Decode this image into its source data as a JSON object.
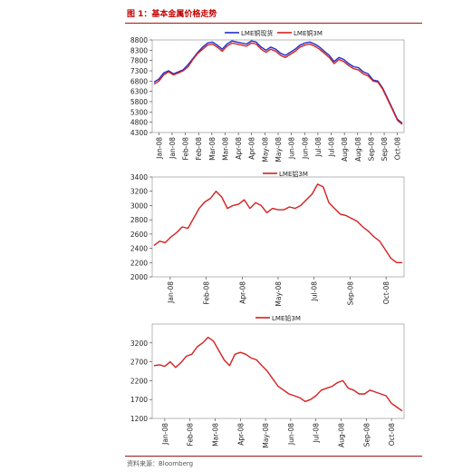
{
  "figure_title": "图 1：基本金属价格走势",
  "source": "资料来源：Bloomberg",
  "colors": {
    "title": "#c00000",
    "rule": "#a01818",
    "red": "#d42020",
    "blue": "#2030c8"
  },
  "chart_data": [
    {
      "type": "line",
      "ylim": [
        4300,
        8800
      ],
      "yticks": [
        4300,
        4800,
        5300,
        5800,
        6300,
        6800,
        7300,
        7800,
        8300,
        8800
      ],
      "xticks": [
        "Jan-08",
        "Jan-08",
        "Feb-08",
        "Feb-08",
        "Mar-08",
        "Mar-08",
        "Apr-08",
        "Apr-08",
        "May-08",
        "May-08",
        "Jun-08",
        "Jun-08",
        "Jul-08",
        "Jul-08",
        "Aug-08",
        "Aug-08",
        "Sep-08",
        "Sep-08",
        "Oct-08"
      ],
      "legend_position": "top",
      "series": [
        {
          "name": "LME铜现货",
          "color": "#2030c8",
          "values": [
            6750,
            6900,
            7200,
            7300,
            7150,
            7250,
            7350,
            7600,
            7900,
            8200,
            8450,
            8650,
            8700,
            8550,
            8350,
            8600,
            8750,
            8700,
            8650,
            8600,
            8750,
            8700,
            8450,
            8300,
            8450,
            8350,
            8150,
            8050,
            8200,
            8350,
            8550,
            8650,
            8700,
            8600,
            8450,
            8250,
            8050,
            7750,
            7950,
            7850,
            7650,
            7500,
            7450,
            7250,
            7150,
            6850,
            6800,
            6450,
            5950,
            5450,
            4950,
            4750
          ]
        },
        {
          "name": "LME铜3M",
          "color": "#d42020",
          "values": [
            6650,
            6800,
            7100,
            7250,
            7100,
            7200,
            7300,
            7500,
            7850,
            8150,
            8350,
            8550,
            8600,
            8450,
            8250,
            8500,
            8650,
            8600,
            8550,
            8500,
            8650,
            8600,
            8350,
            8200,
            8350,
            8250,
            8050,
            7950,
            8100,
            8250,
            8450,
            8550,
            8600,
            8500,
            8350,
            8150,
            7950,
            7650,
            7850,
            7750,
            7550,
            7400,
            7350,
            7150,
            7050,
            6800,
            6750,
            6400,
            5900,
            5400,
            4900,
            4700
          ]
        }
      ]
    },
    {
      "type": "line",
      "ylim": [
        2000,
        3400
      ],
      "yticks": [
        2000,
        2200,
        2400,
        2600,
        2800,
        3000,
        3200,
        3400
      ],
      "xticks": [
        "Jan-08",
        "Feb-08",
        "Apr-08",
        "May-08",
        "Jul-08",
        "Sep-08",
        "Oct-08"
      ],
      "legend_position": "top",
      "series": [
        {
          "name": "LME铝3M",
          "color": "#d42020",
          "values": [
            2440,
            2500,
            2480,
            2560,
            2620,
            2700,
            2680,
            2820,
            2960,
            3050,
            3100,
            3200,
            3120,
            2960,
            3000,
            3020,
            3080,
            2960,
            3040,
            3000,
            2900,
            2960,
            2940,
            2940,
            2980,
            2960,
            3000,
            3080,
            3160,
            3300,
            3260,
            3040,
            2960,
            2880,
            2860,
            2820,
            2780,
            2700,
            2640,
            2560,
            2500,
            2380,
            2260,
            2200,
            2200
          ]
        }
      ]
    },
    {
      "type": "line",
      "ylim": [
        1200,
        3700
      ],
      "yticks": [
        1200,
        1700,
        2200,
        2700,
        3200
      ],
      "xticks": [
        "Jan-08",
        "Feb-08",
        "Mar-08",
        "Apr-08",
        "May-08",
        "Jun-08",
        "Jul-08",
        "Aug-08",
        "Sep-08",
        "Oct-08"
      ],
      "legend_position": "top",
      "series": [
        {
          "name": "LME铅3M",
          "color": "#d42020",
          "values": [
            2600,
            2620,
            2580,
            2700,
            2550,
            2680,
            2850,
            2900,
            3100,
            3200,
            3350,
            3250,
            3000,
            2750,
            2600,
            2900,
            2950,
            2900,
            2800,
            2750,
            2600,
            2450,
            2250,
            2050,
            1950,
            1850,
            1800,
            1750,
            1650,
            1700,
            1800,
            1950,
            2000,
            2050,
            2150,
            2200,
            2000,
            1950,
            1850,
            1850,
            1950,
            1900,
            1850,
            1800,
            1600,
            1500,
            1400
          ]
        }
      ]
    }
  ]
}
